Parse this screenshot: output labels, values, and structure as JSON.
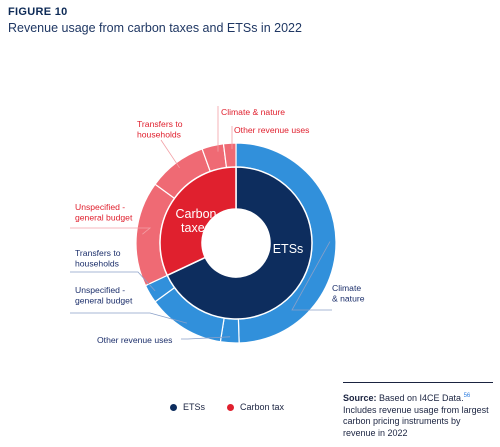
{
  "figure_label": "FIGURE 10",
  "figure_title": "Revenue usage from carbon taxes and ETSs in 2022",
  "colors": {
    "ets_dark": "#0d2d5e",
    "ets_light": "#3190db",
    "tax_red": "#e0202e",
    "tax_pink": "#ef6a74",
    "separator": "#ffffff"
  },
  "chart_data": {
    "type": "pie",
    "variant": "nested-donut",
    "inner_ring": [
      {
        "name": "Carbon taxes",
        "value": 32,
        "color": "#e0202e"
      },
      {
        "name": "ETSs",
        "value": 68,
        "color": "#0d2d5e"
      }
    ],
    "outer_ring": [
      {
        "group": "ETSs",
        "name": "Climate & nature",
        "value": 49.5,
        "color": "#3190db"
      },
      {
        "group": "ETSs",
        "name": "Other revenue uses",
        "value": 3.0,
        "color": "#3190db"
      },
      {
        "group": "ETSs",
        "name": "Unspecified - general budget",
        "value": 12.5,
        "color": "#3190db"
      },
      {
        "group": "ETSs",
        "name": "Transfers to households",
        "value": 3.0,
        "color": "#3190db"
      },
      {
        "group": "Carbon taxes",
        "name": "Unspecified - general budget",
        "value": 17.0,
        "color": "#ef6a74"
      },
      {
        "group": "Carbon taxes",
        "name": "Transfers to households",
        "value": 9.5,
        "color": "#ef6a74"
      },
      {
        "group": "Carbon taxes",
        "name": "Climate & nature",
        "value": 3.5,
        "color": "#ef6a74"
      },
      {
        "group": "Carbon taxes",
        "name": "Other revenue uses",
        "value": 2.0,
        "color": "#ef6a74"
      }
    ],
    "callouts": {
      "ets_climate": [
        "Climate",
        "& nature"
      ],
      "ets_other": [
        "Other revenue uses"
      ],
      "ets_unspecified": [
        "Unspecified -",
        "general budget"
      ],
      "ets_transfers": [
        "Transfers to",
        "households"
      ],
      "tax_unspecified": [
        "Unspecified -",
        "general budget"
      ],
      "tax_transfers": [
        "Transfers to",
        "households"
      ],
      "tax_climate": [
        "Climate & nature"
      ],
      "tax_other": [
        "Other revenue uses"
      ]
    },
    "inner_labels": {
      "carbon_taxes": [
        "Carbon",
        "taxes"
      ],
      "ets": "ETSs"
    },
    "legend": [
      {
        "label": "ETSs",
        "color": "#0d2d5e"
      },
      {
        "label": "Carbon tax",
        "color": "#e0202e"
      }
    ],
    "legend_placement": "bottom-center"
  },
  "source": {
    "label": "Source:",
    "text": " Based on I4CE Data.",
    "footnote": "56",
    "note": "Includes revenue usage from largest carbon pricing instruments by revenue in 2022"
  }
}
